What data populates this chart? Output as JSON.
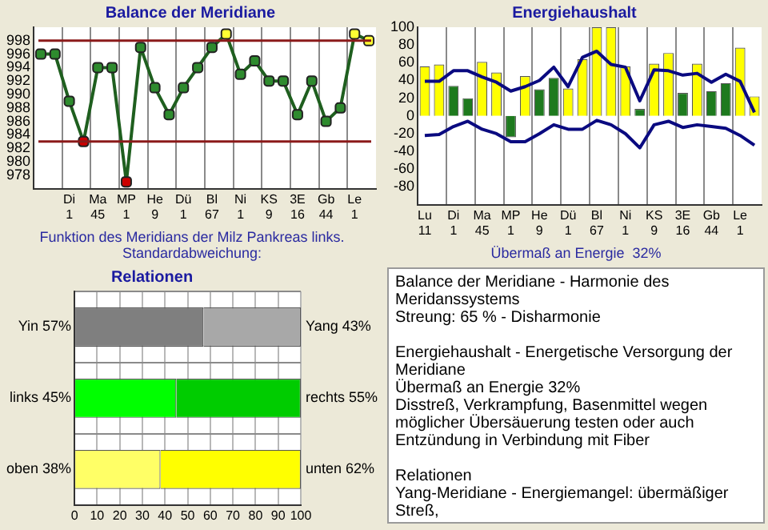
{
  "chart_data": [
    {
      "type": "line",
      "title": "Balance der Meridiane",
      "categories": [
        null,
        null,
        "Di 1",
        null,
        "Ma 45",
        null,
        "MP 1",
        null,
        "He 9",
        null,
        "Dü 1",
        null,
        "Bl 67",
        null,
        "Ni 1",
        null,
        "KS 9",
        null,
        "3E 16",
        null,
        "Gb 44",
        null,
        "Le 1",
        null
      ],
      "series": [
        {
          "color": "#1f5f1f",
          "colors": [
            "#2e8b2e",
            "#2e8b2e",
            "#2e8b2e",
            "#cc0000",
            "#2e8b2e",
            "#2e8b2e",
            "#cc0000",
            "#2e8b2e",
            "#2e8b2e",
            "#2e8b2e",
            "#2e8b2e",
            "#2e8b2e",
            "#2e8b2e",
            "#ffff33",
            "#2e8b2e",
            "#2e8b2e",
            "#2e8b2e",
            "#2e8b2e",
            "#2e8b2e",
            "#2e8b2e",
            "#2e8b2e",
            "#2e8b2e",
            "#ffff33",
            "#ffff33"
          ],
          "values": [
            996,
            996,
            989,
            983,
            994,
            994,
            977,
            997,
            991,
            987,
            991,
            994,
            997,
            999,
            993,
            995,
            992,
            992,
            987,
            992,
            986,
            988,
            999,
            998
          ]
        }
      ],
      "ylim": [
        976,
        1000
      ],
      "yticks": [
        978,
        980,
        982,
        984,
        986,
        988,
        990,
        992,
        994,
        996,
        998
      ],
      "grid": "x",
      "marker": "square",
      "ref_lines": [
        {
          "axis": "y",
          "value": 998,
          "color": "#8b1a1a"
        },
        {
          "axis": "y",
          "value": 983,
          "color": "#8b1a1a"
        }
      ],
      "annotations": [
        "Funktion des Meridians der Milz Pankreas links. Standardabweichung:"
      ]
    },
    {
      "type": "bar",
      "title": "Energiehaushalt",
      "categories": [
        "Lu 11",
        null,
        "Di 1",
        null,
        "Ma 45",
        null,
        "MP 1",
        null,
        "He 9",
        null,
        "Dü 1",
        null,
        "Bl 67",
        null,
        "Ni 1",
        null,
        "KS 9",
        null,
        "3E 16",
        null,
        "Gb 44",
        null,
        "Le 1",
        null
      ],
      "series": [
        {
          "type": "bar",
          "colors": [
            "#ffff00",
            "#ffff00",
            "#1e7a1e",
            "#1e7a1e",
            "#ffff00",
            "#ffff00",
            "#1e7a1e",
            "#ffff00",
            "#1e7a1e",
            "#1e7a1e",
            "#ffff00",
            "#ffff00",
            "#ffff00",
            "#ffff00",
            "#ffff00",
            "#1e7a1e",
            "#ffff00",
            "#ffff00",
            "#1e7a1e",
            "#ffff00",
            "#1e7a1e",
            "#1e7a1e",
            "#ffff00",
            "#ffff00"
          ],
          "values": [
            56,
            58,
            34,
            20,
            61,
            49,
            -24,
            45,
            30,
            43,
            31,
            64,
            100,
            100,
            56,
            8,
            59,
            71,
            26,
            59,
            28,
            37,
            77,
            22
          ]
        },
        {
          "type": "line",
          "color": "#0a0a80",
          "values": [
            39,
            39,
            51,
            51,
            44,
            38,
            28,
            33,
            40,
            55,
            33,
            66,
            73,
            58,
            55,
            17,
            52,
            51,
            46,
            48,
            38,
            47,
            39,
            4
          ]
        },
        {
          "type": "line",
          "color": "#0a0a80",
          "values": [
            -22,
            -21,
            -12,
            -6,
            -15,
            -20,
            -29,
            -29,
            -20,
            -10,
            -15,
            -15,
            -5,
            -10,
            -20,
            -36,
            -10,
            -6,
            -13,
            -10,
            -12,
            -14,
            -22,
            -33
          ]
        }
      ],
      "ylim": [
        -100,
        100
      ],
      "yticks": [
        -80,
        -60,
        -40,
        -20,
        0,
        20,
        40,
        60,
        80,
        100
      ],
      "grid": "x",
      "marker": "none",
      "annotations": [
        "Übermaß an Energie  32%"
      ]
    },
    {
      "type": "bar",
      "title": "Relationen",
      "orientation": "horizontal",
      "stacked": true,
      "categories": [
        "Yin 57%",
        "links 45%",
        "oben 38%"
      ],
      "series": [
        {
          "colors": [
            "#7f7f7f",
            "#00ff00",
            "#ffff66"
          ],
          "values": [
            57,
            45,
            38
          ]
        },
        {
          "colors": [
            "#a8a8a8",
            "#00cc00",
            "#ffff00"
          ],
          "values": [
            43,
            55,
            62
          ],
          "value_labels": [
            "Yang 43%",
            "rechts 55%",
            "unten 62%"
          ]
        }
      ],
      "xlim": [
        0,
        100
      ],
      "xticks": [
        0,
        10,
        20,
        30,
        40,
        50,
        60,
        70,
        80,
        90,
        100
      ],
      "grid": true
    },
    {
      "type": "other",
      "annotations": [
        "Balance der Meridiane - Harmonie des Meridanssystems\nStreung: 65 % - Disharmonie",
        "Energiehaushalt - Energetische Versorgung der Meridiane\nÜbermaß an Energie  32%\nDisstreß, Verkrampfung, Basenmittel wegen möglicher Übersäuerung testen oder auch Entzündung in Verbindung mit Fiber",
        "Relationen\nYang-Meridiane - Energiemangel: übermäßiger Streß,"
      ]
    }
  ]
}
